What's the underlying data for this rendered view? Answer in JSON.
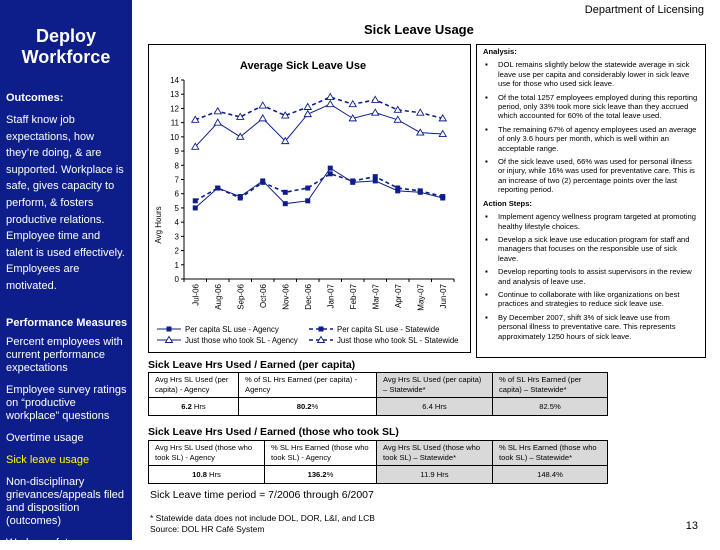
{
  "sidebar": {
    "title_line1": "Deploy",
    "title_line2": "Workforce",
    "outcomes_heading": "Outcomes:",
    "outcomes_text": "Staff know job expectations, how they’re doing, & are supported. Workplace is safe, gives capacity to perform, & fosters productive relations. Employee time and talent is used effectively. Employees are motivated.",
    "perf_heading": "Performance Measures",
    "perf_items": [
      "Percent employees with current performance expectations",
      "Employee survey ratings on “productive workplace” questions",
      "Overtime usage",
      "Sick leave usage",
      "Non-disciplinary grievances/appeals filed and disposition (outcomes)",
      "Worker safety"
    ],
    "active_color": "#ffff00",
    "bg_color": "#0d1d8a"
  },
  "header": {
    "department": "Department of Licensing",
    "title": "Sick Leave Usage"
  },
  "chart_data": {
    "type": "line",
    "title": "Average Sick Leave Use",
    "ylabel": "Avg Hours",
    "xlabel": "",
    "ylim": [
      0,
      14
    ],
    "yticks": [
      "0",
      "1",
      "2",
      "3",
      "4",
      "5",
      "6",
      "7",
      "8",
      "9",
      "10",
      "11",
      "12",
      "13",
      "14"
    ],
    "categories": [
      "Jul-06",
      "Aug-06",
      "Sep-06",
      "Oct-06",
      "Nov-06",
      "Dec-06",
      "Jan-07",
      "Feb-07",
      "Mar-07",
      "Apr-07",
      "May-07",
      "Jun-07"
    ],
    "series": [
      {
        "name": "Per capita SL use - Agency",
        "style": "solid",
        "marker": "square",
        "color": "#0d1d8a",
        "values": [
          5.0,
          6.4,
          5.8,
          6.9,
          5.3,
          5.5,
          7.8,
          6.8,
          6.9,
          6.2,
          6.1,
          5.7
        ]
      },
      {
        "name": "Per capita SL use - Statewide",
        "style": "dashed",
        "marker": "square",
        "color": "#0d1d8a",
        "values": [
          5.5,
          6.4,
          5.7,
          6.8,
          6.1,
          6.4,
          7.4,
          6.9,
          7.2,
          6.4,
          6.2,
          5.8
        ]
      },
      {
        "name": "Just those who took SL - Agency",
        "style": "solid",
        "marker": "triangle",
        "color": "#0d1d8a",
        "values": [
          9.3,
          11.0,
          10.0,
          11.3,
          9.7,
          11.6,
          12.3,
          11.3,
          11.7,
          11.2,
          10.3,
          10.2
        ]
      },
      {
        "name": "Just those who took SL - Statewide",
        "style": "dashed",
        "marker": "triangle",
        "color": "#0d1d8a",
        "values": [
          11.2,
          11.8,
          11.4,
          12.2,
          11.5,
          12.1,
          12.8,
          12.3,
          12.6,
          11.9,
          11.7,
          11.3
        ]
      }
    ]
  },
  "analysis": {
    "heading": "Analysis:",
    "items": [
      "DOL remains slightly below the statewide average in sick leave use per capita and considerably lower in sick leave use for those who used sick leave.",
      "Of the total 1257 employees employed during this reporting period, only 33% took more sick leave than they accrued which accounted for 60% of the total leave used.",
      "The remaining 67% of agency employees used an average of only 3.6 hours per month, which is well within an acceptable range.",
      "Of the sick leave used, 66% was used for personal illness or injury, while 16% was used for preventative care.  This is an increase of two (2) percentage points over the last reporting period."
    ],
    "action_heading": "Action Steps:",
    "actions": [
      "Implement agency wellness program targeted at promoting healthy lifestyle choices.",
      "Develop a sick leave use education program for staff and managers that focuses on the responsible use of sick leave.",
      "Develop reporting tools to assist supervisors in the review and analysis of leave use.",
      "Continue to collaborate with like organizations on best practices and strategies to reduce sick leave use.",
      "By December 2007, shift 3% of sick leave use from personal illness to preventative care. This represents approximately 1250 hours of sick leave."
    ]
  },
  "table1": {
    "title": "Sick Leave Hrs Used / Earned (per capita)",
    "headers": [
      "Avg Hrs SL Used (per capita) - Agency",
      "% of SL Hrs Earned (per capita) - Agency",
      "Avg Hrs SL Used (per capita) – Statewide*",
      "% of SL Hrs Earned (per capita) – Statewide*"
    ],
    "v1_bold": "6.2",
    "v1_unit": " Hrs",
    "v2_bold": "80.2",
    "v2_unit": "%",
    "v3": "6.4 Hrs",
    "v4": "82.5%"
  },
  "table2": {
    "title": "Sick Leave Hrs Used / Earned (those who took SL)",
    "headers": [
      "Avg Hrs SL Used (those who took SL) - Agency",
      "% SL Hrs Earned (those who took SL) - Agency",
      "Avg Hrs SL Used (those who took SL) – Statewide*",
      "% SL Hrs Earned (those who took SL) – Statewide*"
    ],
    "v1_bold": "10.8",
    "v1_unit": " Hrs",
    "v2_bold": "136.2",
    "v2_unit": "%",
    "v3": "11.9 Hrs",
    "v4": "148.4%"
  },
  "footer": {
    "period": "Sick Leave time period = 7/2006 through 6/2007",
    "note1": "* Statewide data does not include DOL, DOR, L&I, and LCB",
    "note2": "Source:  DOL HR Café System",
    "page": "13"
  }
}
